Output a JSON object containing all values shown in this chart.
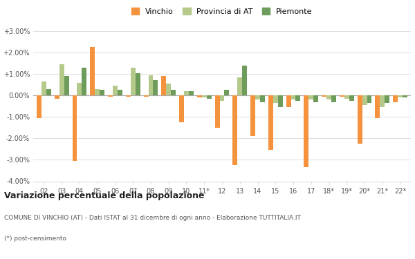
{
  "categories": [
    "02",
    "03",
    "04",
    "05",
    "06",
    "07",
    "08",
    "09",
    "10",
    "11*",
    "12",
    "13",
    "14",
    "15",
    "16",
    "17",
    "18*",
    "19*",
    "20*",
    "21*",
    "22*"
  ],
  "vinchio": [
    -0.0105,
    -0.0015,
    -0.0305,
    0.0225,
    -0.0005,
    -0.0005,
    -0.0005,
    0.009,
    -0.0125,
    -0.001,
    -0.015,
    -0.0325,
    -0.019,
    -0.0255,
    -0.0055,
    -0.0335,
    -0.0005,
    -0.0005,
    -0.0225,
    -0.0105,
    -0.003
  ],
  "provincia_at": [
    0.0065,
    0.0145,
    0.006,
    0.003,
    0.0045,
    0.013,
    0.0095,
    0.0055,
    0.002,
    -0.001,
    -0.0025,
    0.0085,
    -0.002,
    -0.0035,
    -0.002,
    -0.002,
    -0.002,
    -0.0015,
    -0.0045,
    -0.0055,
    -0.001
  ],
  "piemonte": [
    0.003,
    0.009,
    0.013,
    0.0025,
    0.0025,
    0.0105,
    0.007,
    0.0025,
    0.002,
    -0.0015,
    0.0025,
    0.014,
    -0.003,
    -0.0055,
    -0.0025,
    -0.003,
    -0.003,
    -0.0025,
    -0.0035,
    -0.0035,
    -0.001
  ],
  "color_vinchio": "#f5923e",
  "color_provincia": "#b5c98a",
  "color_piemonte": "#6e9c5a",
  "title": "Variazione percentuale della popolazione",
  "subtitle": "COMUNE DI VINCHIO (AT) - Dati ISTAT al 31 dicembre di ogni anno - Elaborazione TUTTITALIA.IT",
  "footnote": "(*) post-censimento",
  "ylim": [
    -0.04,
    0.03
  ],
  "yticks": [
    -0.04,
    -0.03,
    -0.02,
    -0.01,
    0.0,
    0.01,
    0.02,
    0.03
  ],
  "ytick_labels": [
    "-4.00%",
    "-3.00%",
    "-2.00%",
    "-1.00%",
    "0.00%",
    "+1.00%",
    "+2.00%",
    "+3.00%"
  ],
  "bg_color": "#ffffff",
  "grid_color": "#dddddd"
}
